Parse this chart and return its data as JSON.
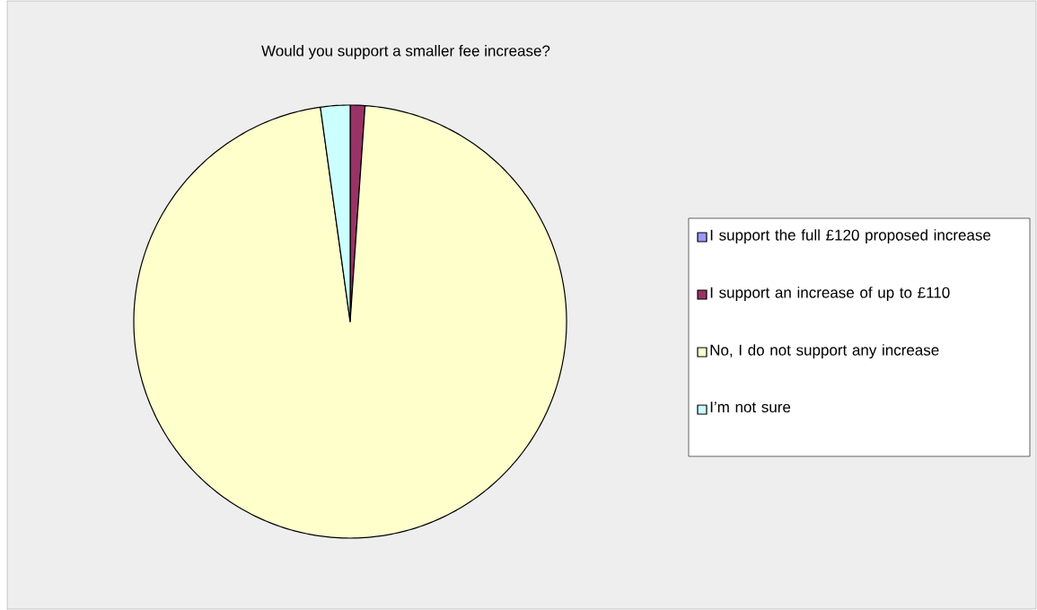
{
  "chart_data": {
    "type": "pie",
    "title": "Would you support a smaller fee increase?",
    "categories": [
      "I support the full £120 proposed increase",
      "I support an increase of up to £110",
      "No, I do not support any increase",
      "I’m not sure"
    ],
    "values": [
      0,
      1.1,
      96.7,
      2.2
    ],
    "colors": [
      "#9999ff",
      "#993366",
      "#ffffcc",
      "#ccffff"
    ],
    "legend": "right"
  }
}
